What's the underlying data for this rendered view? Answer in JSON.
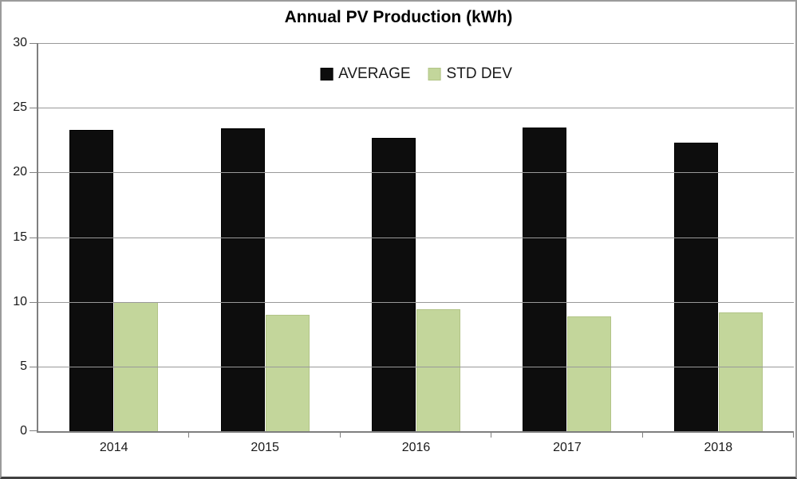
{
  "chart_data": {
    "type": "bar",
    "title": "Annual PV Production (kWh)",
    "categories": [
      "2014",
      "2015",
      "2016",
      "2017",
      "2018"
    ],
    "series": [
      {
        "name": "AVERAGE",
        "color": "#0d0d0d",
        "border_color": "#000000",
        "values": [
          23.3,
          23.4,
          22.7,
          23.5,
          22.3
        ]
      },
      {
        "name": "STD DEV",
        "color": "#c3d69b",
        "border_color": "#b2c487",
        "values": [
          10.0,
          9.0,
          9.4,
          8.9,
          9.2
        ]
      }
    ],
    "ylim": [
      0,
      30
    ],
    "ytick_step": 5,
    "yticks": [
      30,
      25,
      20,
      15,
      10,
      5,
      0
    ],
    "xlabel": "",
    "ylabel": "",
    "grid": "horizontal",
    "legend_position": "top-center"
  },
  "colors": {
    "background": "#ffffff",
    "gridline": "#999999",
    "axis": "#7f7f7f",
    "tick_text": "#1a1a1a",
    "title_text": "#000000",
    "frame_border": "#9b9b9b",
    "frame_border_bottom": "#414141"
  }
}
